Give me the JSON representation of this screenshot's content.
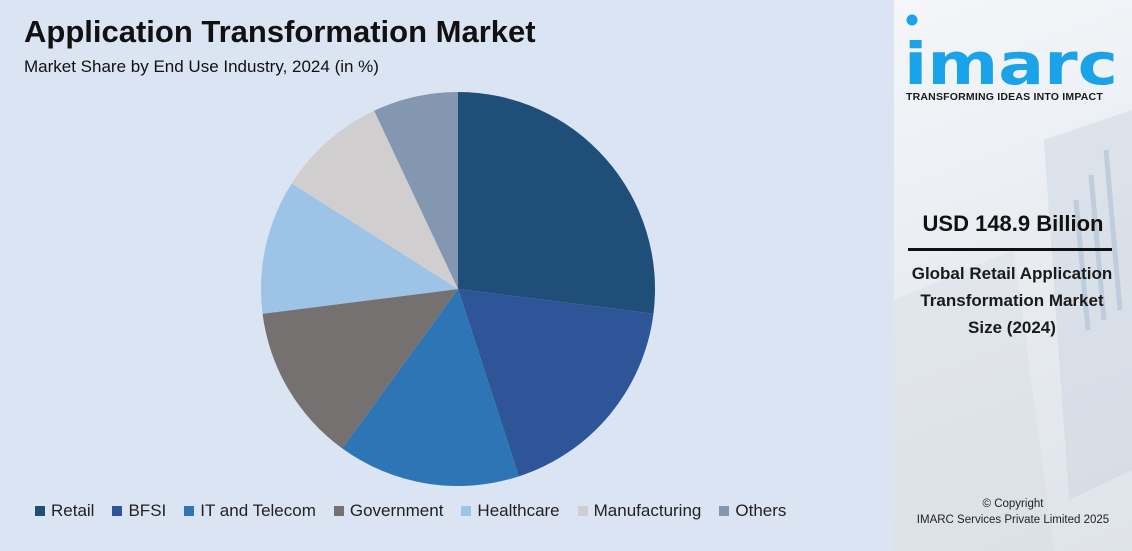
{
  "chart_data": {
    "type": "pie",
    "title": "Application Transformation Market",
    "subtitle": "Market Share by End Use Industry, 2024 (in %)",
    "categories": [
      "Retail",
      "BFSI",
      "IT and Telecom",
      "Government",
      "Healthcare",
      "Manufacturing",
      "Others"
    ],
    "values": [
      27,
      18,
      15,
      13,
      11,
      9,
      7
    ],
    "colors": [
      "#1f4e79",
      "#2e5597",
      "#2e75b6",
      "#767171",
      "#9dc3e6",
      "#d0cece",
      "#8497b0"
    ],
    "legend_position": "bottom",
    "start_angle": "12 o'clock, clockwise"
  },
  "sidebar": {
    "logo_text": "imarc",
    "tagline": "TRANSFORMING IDEAS INTO IMPACT",
    "value": "USD 148.9 Billion",
    "description": "Global Retail Application Transformation Market Size (2024)",
    "copyright_line1": "© Copyright",
    "copyright_line2": "IMARC Services Private Limited 2025",
    "logo_color": "#1aa3e8"
  }
}
